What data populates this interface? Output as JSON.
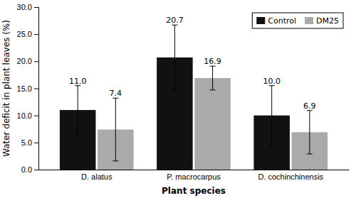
{
  "chart_data": {
    "type": "bar",
    "categories": [
      "D. alatus",
      "P. macrocarpus",
      "D. cochinchinensis"
    ],
    "series": [
      {
        "name": "Control",
        "color": "#111111",
        "values": [
          11.0,
          20.7,
          10.0
        ],
        "value_labels": [
          "11.0",
          "20.7",
          "10.0"
        ],
        "errors": [
          4.5,
          6.0,
          5.5
        ]
      },
      {
        "name": "DM25",
        "color": "#aaaaaa",
        "values": [
          7.4,
          16.9,
          6.9
        ],
        "value_labels": [
          "7.4",
          "16.9",
          "6.9"
        ],
        "errors": [
          5.8,
          2.2,
          4.0
        ]
      }
    ],
    "xlabel": "Plant species",
    "ylabel": "Water deficit in plant leaves (%)",
    "ylim": [
      0,
      30.0
    ],
    "yticks": [
      {
        "value": 0.0,
        "label": "0.0"
      },
      {
        "value": 5.0,
        "label": "5.0"
      },
      {
        "value": 10.0,
        "label": "10.0"
      },
      {
        "value": 15.0,
        "label": "15.0"
      },
      {
        "value": 20.0,
        "label": "20.0"
      },
      {
        "value": 25.0,
        "label": "25.0"
      },
      {
        "value": 30.0,
        "label": "30.0"
      }
    ],
    "data_labels": true,
    "legend": "upper right",
    "grid": false
  }
}
